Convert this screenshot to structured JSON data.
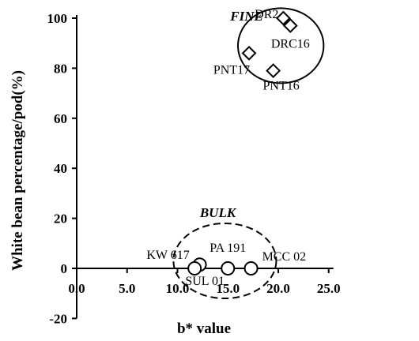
{
  "chart_data": {
    "type": "scatter",
    "title": "",
    "xlabel": "b* value",
    "ylabel": "White bean percentage/pod(%)",
    "xlim": [
      0,
      25
    ],
    "ylim": [
      -20,
      100
    ],
    "x_ticks": [
      "0.0",
      "5.0",
      "10.0",
      "15.0",
      "20.0",
      "25.0"
    ],
    "y_ticks": [
      "-20",
      "0",
      "20",
      "40",
      "60",
      "80",
      "100"
    ],
    "grid": false,
    "points": [
      {
        "label": "DR2",
        "x": 20.5,
        "y": 100,
        "marker": "diamond"
      },
      {
        "label": "DRC16",
        "x": 21.2,
        "y": 97,
        "marker": "diamond"
      },
      {
        "label": "PNT17",
        "x": 17.1,
        "y": 86,
        "marker": "diamond"
      },
      {
        "label": "PNT16",
        "x": 19.5,
        "y": 79,
        "marker": "diamond"
      },
      {
        "label": "KW 617",
        "x": 12.2,
        "y": 1.5,
        "marker": "circle"
      },
      {
        "label": "SUL 01",
        "x": 11.7,
        "y": 0,
        "marker": "circle"
      },
      {
        "label": "PA 191",
        "x": 15.0,
        "y": 0,
        "marker": "circle"
      },
      {
        "label": "MCC 02",
        "x": 17.3,
        "y": 0,
        "marker": "circle"
      }
    ],
    "groups": [
      {
        "label": "FINE",
        "x": [
          16.0,
          24.5
        ],
        "y": [
          74,
          104
        ],
        "border": "solid"
      },
      {
        "label": "BULK",
        "x": [
          9.6,
          19.8
        ],
        "y": [
          -12,
          18
        ],
        "border": "dashed"
      }
    ]
  }
}
